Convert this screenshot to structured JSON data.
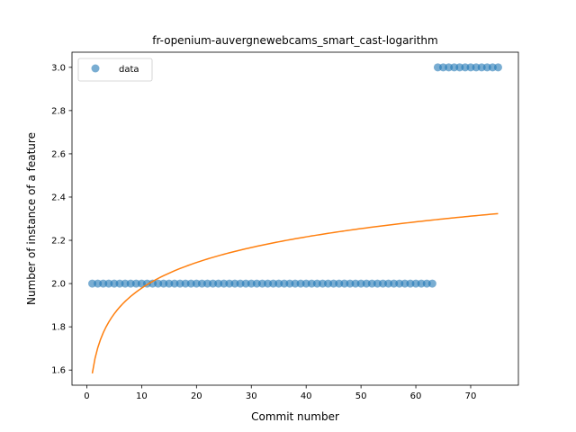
{
  "chart_data": {
    "type": "scatter",
    "title": "fr-openium-auvergnewebcams_smart_cast-logarithm",
    "xlabel": "Commit number",
    "ylabel": "Number of instance of a feature",
    "xlim": [
      -2.7,
      78.7
    ],
    "ylim": [
      1.53,
      3.07
    ],
    "xticks": [
      0,
      10,
      20,
      30,
      40,
      50,
      60,
      70
    ],
    "yticks": [
      1.6,
      1.8,
      2.0,
      2.2,
      2.4,
      2.6,
      2.8,
      3.0
    ],
    "ytick_labels": [
      "1.6",
      "1.8",
      "2.0",
      "2.2",
      "2.4",
      "2.6",
      "2.8",
      "3.0"
    ],
    "grid": false,
    "legend_position": "upper left",
    "series": [
      {
        "name": "data",
        "kind": "scatter",
        "color": "#1f77b4",
        "x": [
          1,
          2,
          3,
          4,
          5,
          6,
          7,
          8,
          9,
          10,
          11,
          12,
          13,
          14,
          15,
          16,
          17,
          18,
          19,
          20,
          21,
          22,
          23,
          24,
          25,
          26,
          27,
          28,
          29,
          30,
          31,
          32,
          33,
          34,
          35,
          36,
          37,
          38,
          39,
          40,
          41,
          42,
          43,
          44,
          45,
          46,
          47,
          48,
          49,
          50,
          51,
          52,
          53,
          54,
          55,
          56,
          57,
          58,
          59,
          60,
          61,
          62,
          63,
          64,
          65,
          66,
          67,
          68,
          69,
          70,
          71,
          72,
          73,
          74,
          75
        ],
        "y": [
          2,
          2,
          2,
          2,
          2,
          2,
          2,
          2,
          2,
          2,
          2,
          2,
          2,
          2,
          2,
          2,
          2,
          2,
          2,
          2,
          2,
          2,
          2,
          2,
          2,
          2,
          2,
          2,
          2,
          2,
          2,
          2,
          2,
          2,
          2,
          2,
          2,
          2,
          2,
          2,
          2,
          2,
          2,
          2,
          2,
          2,
          2,
          2,
          2,
          2,
          2,
          2,
          2,
          2,
          2,
          2,
          2,
          2,
          2,
          2,
          2,
          2,
          2,
          3,
          3,
          3,
          3,
          3,
          3,
          3,
          3,
          3,
          3,
          3,
          3
        ]
      },
      {
        "kind": "line",
        "color": "#ff7f0e",
        "fit": "logarithmic",
        "a": 1.5848,
        "b": 0.1711,
        "x_range": [
          1,
          75
        ]
      }
    ]
  }
}
